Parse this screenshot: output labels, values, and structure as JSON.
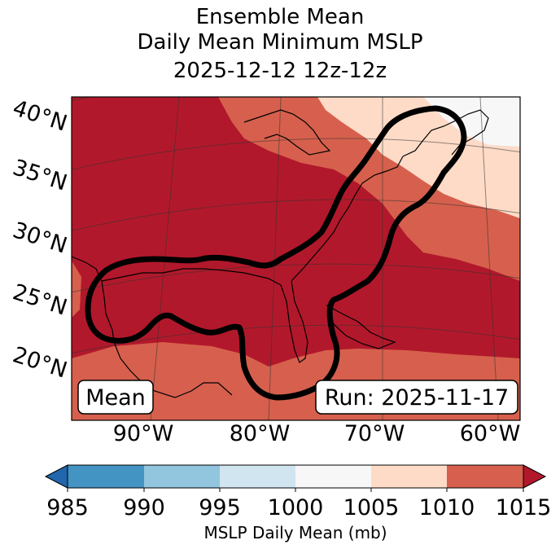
{
  "title": {
    "line1": "Ensemble Mean",
    "line2": "Daily Mean Minimum MSLP",
    "line3": "2025-12-12 12z-12z"
  },
  "map": {
    "lat_labels": [
      "40°N",
      "35°N",
      "30°N",
      "25°N",
      "20°N"
    ],
    "lon_labels": [
      "90°W",
      "80°W",
      "70°W",
      "60°W"
    ],
    "mean_label": "Mean",
    "run_label": "Run: 2025-11-17"
  },
  "colorbar": {
    "title": "MSLP Daily Mean (mb)",
    "ticks": [
      "985",
      "990",
      "995",
      "1000",
      "1005",
      "1010",
      "1015"
    ],
    "colors": {
      "below_985": "#2166ac",
      "985_990": "#4393c3",
      "990_995": "#92c5de",
      "995_1000": "#d1e5f0",
      "1000_1005": "#f7f7f7",
      "1005_1010": "#fddbc7",
      "1010_1015": "#d6604d",
      "above_1015": "#b2182b"
    }
  }
}
